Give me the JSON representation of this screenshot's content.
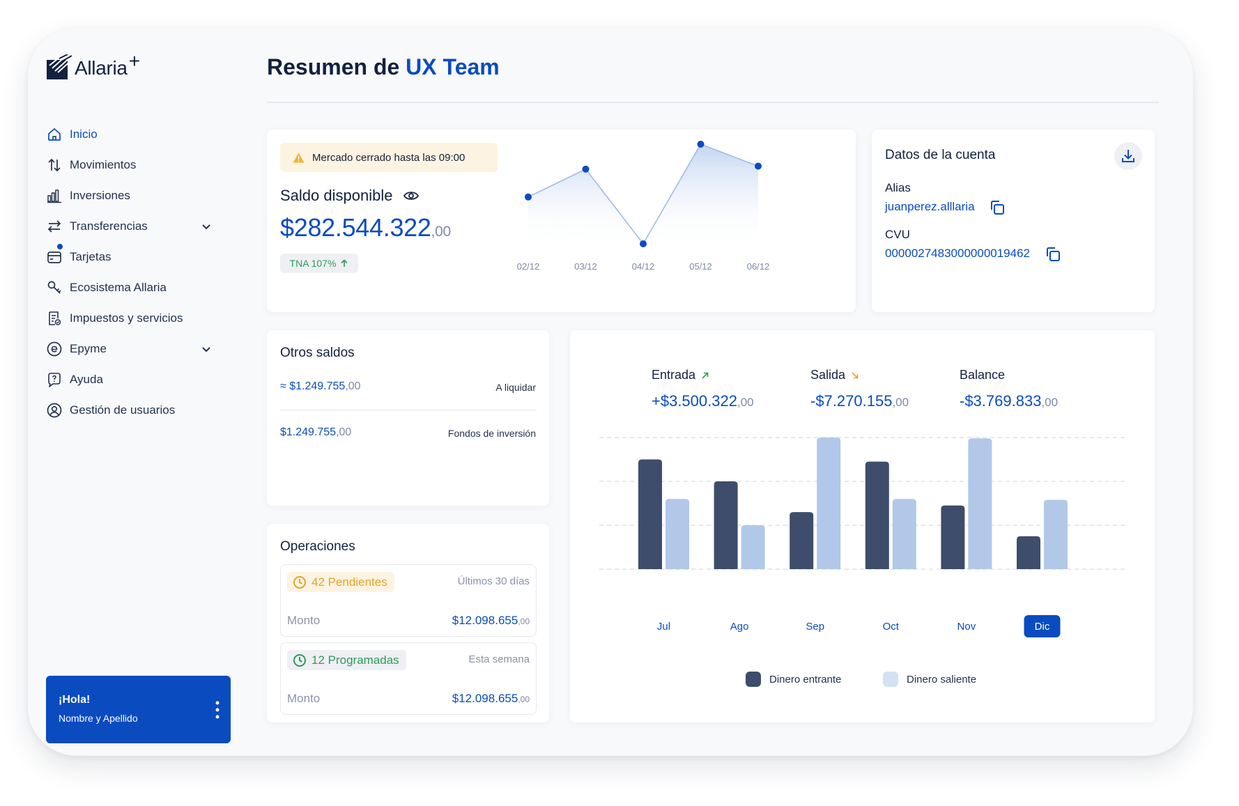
{
  "brand": {
    "name": "Allaria",
    "plus": "+"
  },
  "header": {
    "title_prefix": "Resumen de",
    "title_accent": "UX Team"
  },
  "sidebar": {
    "items": [
      {
        "label": "Inicio",
        "icon": "home-icon",
        "active": true
      },
      {
        "label": "Movimientos",
        "icon": "arrows-updown-icon"
      },
      {
        "label": "Inversiones",
        "icon": "bar-chart-icon"
      },
      {
        "label": "Transferencias",
        "icon": "transfer-icon",
        "expandable": true
      },
      {
        "label": "Tarjetas",
        "icon": "card-icon",
        "notification": true
      },
      {
        "label": "Ecosistema Allaria",
        "icon": "ecosystem-icon"
      },
      {
        "label": "Impuestos y servicios",
        "icon": "receipt-icon"
      },
      {
        "label": "Epyme",
        "icon": "epyme-icon",
        "expandable": true
      },
      {
        "label": "Ayuda",
        "icon": "help-icon"
      },
      {
        "label": "Gestión de usuarios",
        "icon": "user-circle-icon"
      }
    ]
  },
  "user": {
    "greeting": "¡Hola!",
    "name": "Nombre y Apellido"
  },
  "balance": {
    "market_notice": "Mercado cerrado hasta las 09:00",
    "title": "Saldo disponible",
    "amount": "$282.544.322",
    "cents": ",00",
    "tna": "TNA 107%"
  },
  "account": {
    "title": "Datos de la cuenta",
    "alias_label": "Alias",
    "alias": "juanperez.alllaria",
    "cvu_label": "CVU",
    "cvu": "0000027483000000019462"
  },
  "otros_saldos": {
    "title": "Otros saldos",
    "rows": [
      {
        "amount": "≈ $1.249.755",
        "cents": ",00",
        "label": "A liquidar"
      },
      {
        "amount": "$1.249.755",
        "cents": ",00",
        "label": "Fondos de inversión"
      }
    ]
  },
  "operaciones": {
    "title": "Operaciones",
    "items": [
      {
        "chip": "42 Pendientes",
        "period": "Últimos 30 días",
        "monto_label": "Monto",
        "amount": "$12.098.655",
        "cents": ",00",
        "status": "pending"
      },
      {
        "chip": "12 Programadas",
        "period": "Esta semana",
        "monto_label": "Monto",
        "amount": "$12.098.655",
        "cents": ",00",
        "status": "scheduled"
      }
    ]
  },
  "summary": {
    "entrada": {
      "label": "Entrada",
      "amount": "+$3.500.322",
      "cents": ",00"
    },
    "salida": {
      "label": "Salida",
      "amount": "-$7.270.155",
      "cents": ",00"
    },
    "balance": {
      "label": "Balance",
      "amount": "-$3.769.833",
      "cents": ",00"
    }
  },
  "legend": {
    "in": "Dinero entrante",
    "out": "Dinero saliente"
  },
  "colors": {
    "accent": "#0a4bc0",
    "dark_bar": "#3d4d6b",
    "light_bar": "#b1c8e8",
    "positive": "#2e9a5a",
    "warning": "#e0a52a"
  },
  "chart_data": [
    {
      "type": "line",
      "x": [
        "02/12",
        "03/12",
        "04/12",
        "05/12",
        "06/12"
      ],
      "series": [
        {
          "values": [
            0.47,
            0.75,
            0.0,
            1.0,
            0.78
          ]
        }
      ],
      "grid": false
    },
    {
      "type": "bar",
      "categories": [
        "Jul",
        "Ago",
        "Sep",
        "Oct",
        "Nov",
        "Dic"
      ],
      "series": [
        {
          "name": "Dinero entrante",
          "values": [
            2.5,
            2.0,
            1.3,
            2.45,
            1.45,
            0.75
          ]
        },
        {
          "name": "Dinero saliente",
          "values": [
            1.6,
            1.0,
            3.0,
            1.6,
            2.98,
            1.58
          ]
        }
      ],
      "ylim": [
        0,
        3
      ],
      "selected_category": "Dic",
      "grid": true
    }
  ]
}
